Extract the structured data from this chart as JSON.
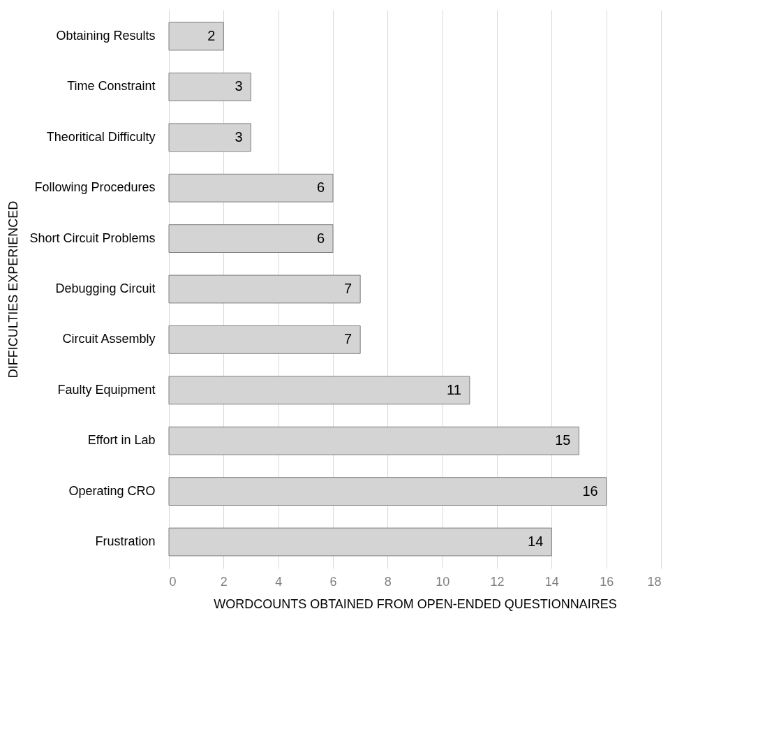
{
  "chart_data": {
    "type": "bar",
    "orientation": "horizontal",
    "xlabel": "WORDCOUNTS OBTAINED FROM OPEN-ENDED QUESTIONNAIRES",
    "ylabel": "DIFFICULTIES EXPERIENCED",
    "categories": [
      "Obtaining Results",
      "Time Constraint",
      "Theoritical Difficulty",
      "Following Procedures",
      "Short Circuit Problems",
      "Debugging Circuit",
      "Circuit Assembly",
      "Faulty Equipment",
      "Effort in Lab",
      "Operating CRO",
      "Frustration"
    ],
    "values": [
      2,
      3,
      3,
      6,
      6,
      7,
      7,
      11,
      15,
      16,
      14
    ],
    "color": "#d4d4d4",
    "xlim": [
      0,
      18
    ],
    "xticks": [
      0,
      2,
      4,
      6,
      8,
      10,
      12,
      14,
      16,
      18
    ],
    "grid": "x",
    "data_labels": true
  }
}
